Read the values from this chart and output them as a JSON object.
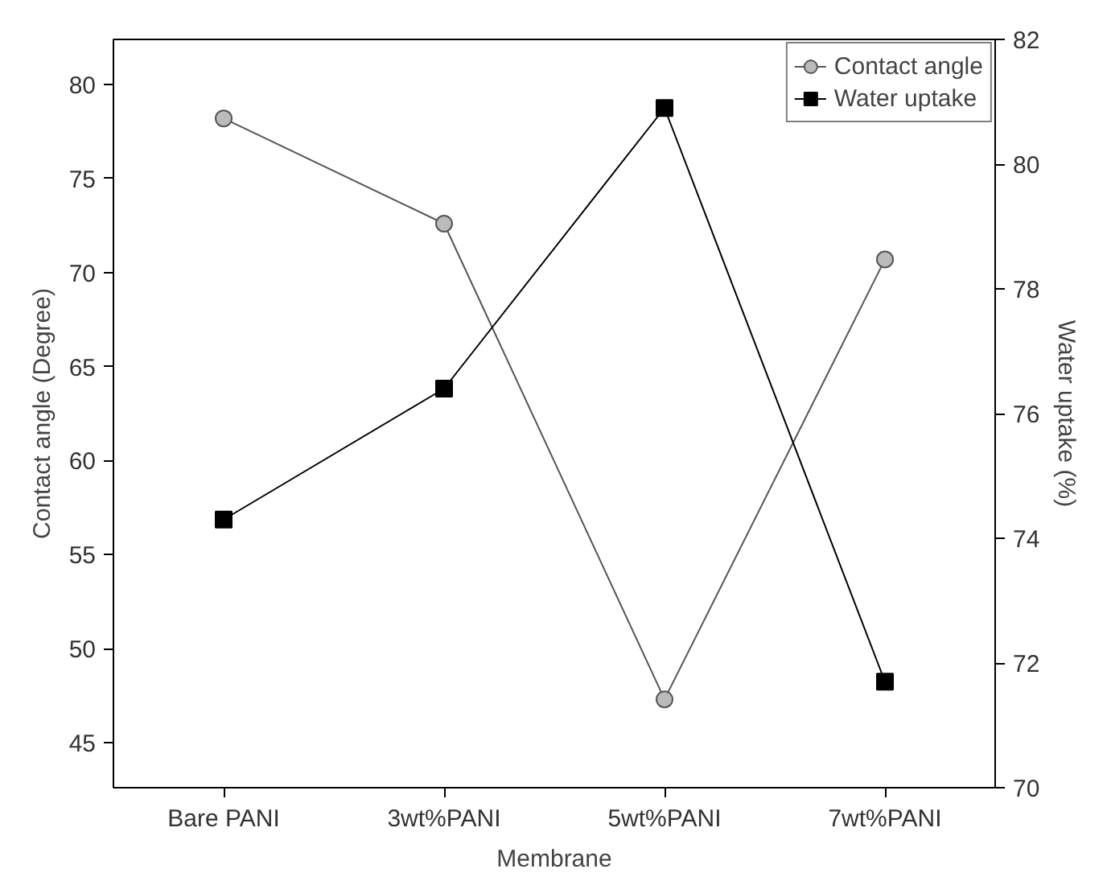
{
  "chart_data": {
    "type": "line",
    "xlabel": "Membrane",
    "ylabel": "Contact angle (Degree)",
    "y2label": "Water uptake (%)",
    "categories": [
      "Bare PANI",
      "3wt%PANI",
      "5wt%PANI",
      "7wt%PANI"
    ],
    "series": [
      {
        "name": "Contact angle",
        "color": "#555555",
        "marker": "circle",
        "values": [
          78.2,
          72.6,
          47.3,
          70.7
        ]
      },
      {
        "name": "Water uptake",
        "color": "#000000",
        "marker": "square",
        "axis": "y2",
        "values": [
          74.3,
          76.4,
          80.9,
          71.7
        ]
      }
    ],
    "ylim": [
      42.6,
      82.4
    ],
    "yticks": [
      45,
      50,
      55,
      60,
      65,
      70,
      75,
      80
    ],
    "y2lim": [
      70,
      82
    ],
    "y2ticks": [
      70,
      72,
      74,
      76,
      78,
      80,
      82
    ],
    "legend": "top right",
    "grid": false
  }
}
